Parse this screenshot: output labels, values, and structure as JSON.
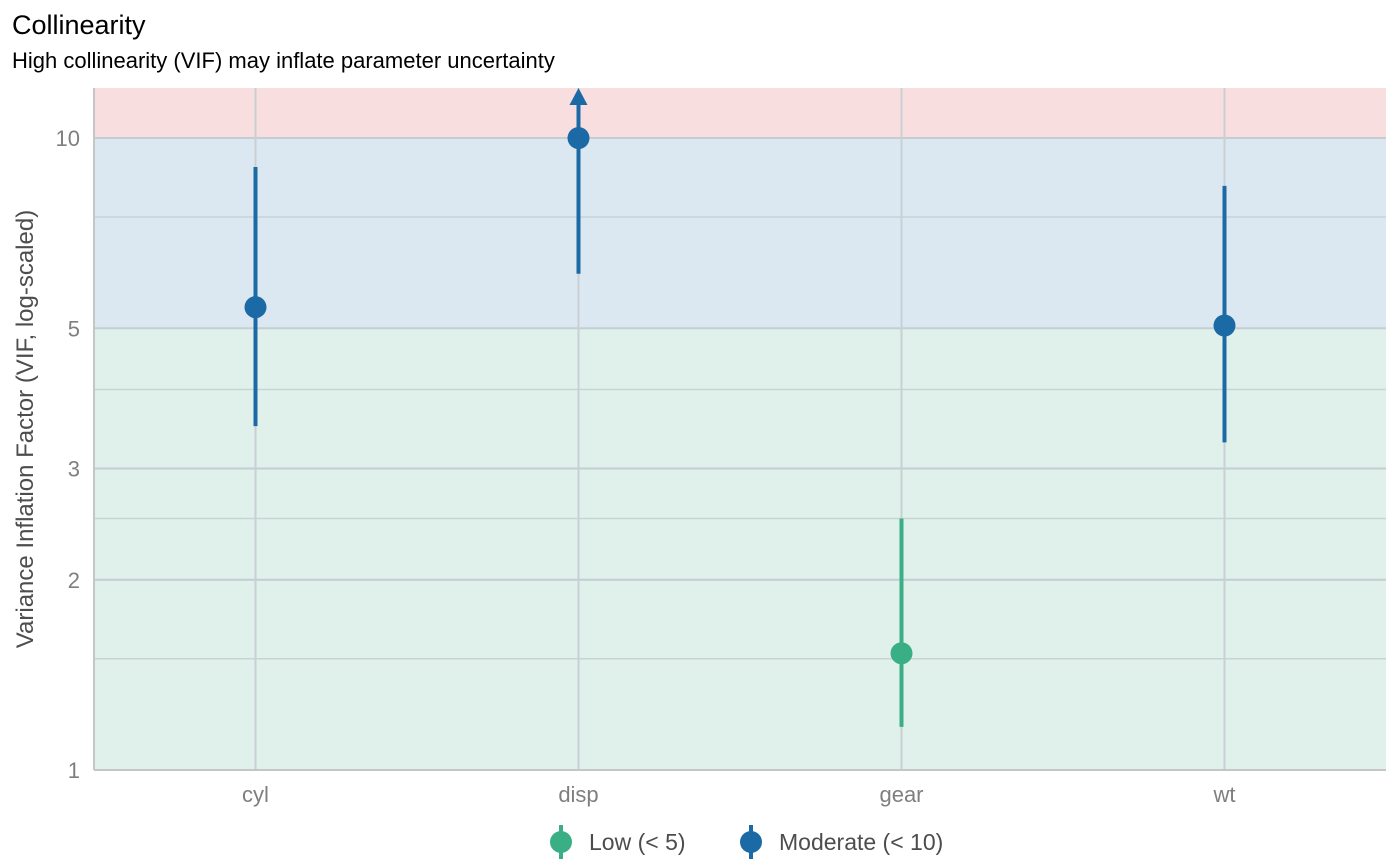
{
  "chart_data": {
    "type": "errorbar",
    "title": "Collinearity",
    "subtitle": "High collinearity (VIF) may inflate parameter uncertainty",
    "xlabel": "",
    "ylabel": "Variance Inflation Factor (VIF, log-scaled)",
    "y_scale": "log",
    "ylim": [
      1,
      12
    ],
    "yticks": [
      1,
      2,
      3,
      5,
      10
    ],
    "minor_gridlines": [
      1.5,
      2.5,
      4,
      7.5
    ],
    "grid": true,
    "zones": [
      {
        "name": "low",
        "from": 1,
        "to": 5,
        "color": "#e0f1eb"
      },
      {
        "name": "moderate",
        "from": 5,
        "to": 10,
        "color": "#dce8f1"
      },
      {
        "name": "high",
        "from": 10,
        "to": 12,
        "color": "#f9dedf"
      }
    ],
    "categories": [
      "cyl",
      "disp",
      "gear",
      "wt"
    ],
    "points": [
      {
        "term": "cyl",
        "vif": 5.4,
        "ci_low": 3.5,
        "ci_high": 9.0,
        "group": "Moderate (< 10)"
      },
      {
        "term": "disp",
        "vif": 10.0,
        "ci_low": 6.1,
        "ci_high": 12.0,
        "group": "Moderate (< 10)",
        "ci_truncated": true
      },
      {
        "term": "gear",
        "vif": 1.53,
        "ci_low": 1.17,
        "ci_high": 2.5,
        "group": "Low (< 5)"
      },
      {
        "term": "wt",
        "vif": 5.05,
        "ci_low": 3.3,
        "ci_high": 8.4,
        "group": "Moderate (< 10)"
      }
    ],
    "legend": {
      "position": "bottom",
      "entries": [
        {
          "label": "Low (< 5)",
          "color": "#3aaf85"
        },
        {
          "label": "Moderate (< 10)",
          "color": "#1b6aa5"
        }
      ]
    }
  }
}
